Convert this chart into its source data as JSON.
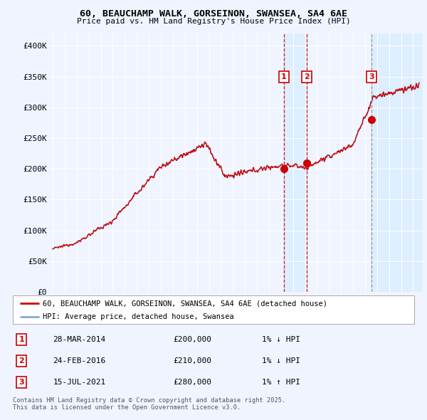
{
  "title": "60, BEAUCHAMP WALK, GORSEINON, SWANSEA, SA4 6AE",
  "subtitle": "Price paid vs. HM Land Registry's House Price Index (HPI)",
  "background_color": "#f0f4ff",
  "plot_bg_color": "#f0f4ff",
  "ylim": [
    0,
    420000
  ],
  "yticks": [
    0,
    50000,
    100000,
    150000,
    200000,
    250000,
    300000,
    350000,
    400000
  ],
  "ytick_labels": [
    "£0",
    "£50K",
    "£100K",
    "£150K",
    "£200K",
    "£250K",
    "£300K",
    "£350K",
    "£400K"
  ],
  "sale_dates_year": [
    2014.24,
    2016.15,
    2021.54
  ],
  "sale_prices": [
    200000,
    210000,
    280000
  ],
  "sale_labels": [
    "1",
    "2",
    "3"
  ],
  "sale_info": [
    {
      "num": "1",
      "date": "28-MAR-2014",
      "price": "£200,000",
      "hpi": "1% ↓ HPI"
    },
    {
      "num": "2",
      "date": "24-FEB-2016",
      "price": "£210,000",
      "hpi": "1% ↓ HPI"
    },
    {
      "num": "3",
      "date": "15-JUL-2021",
      "price": "£280,000",
      "hpi": "1% ↑ HPI"
    }
  ],
  "legend_line1": "60, BEAUCHAMP WALK, GORSEINON, SWANSEA, SA4 6AE (detached house)",
  "legend_line2": "HPI: Average price, detached house, Swansea",
  "footer": "Contains HM Land Registry data © Crown copyright and database right 2025.\nThis data is licensed under the Open Government Licence v3.0.",
  "red_color": "#cc0000",
  "blue_color": "#88aacc",
  "shade_color": "#ddeeff",
  "xlim_left": 1994.7,
  "xlim_right": 2025.8
}
